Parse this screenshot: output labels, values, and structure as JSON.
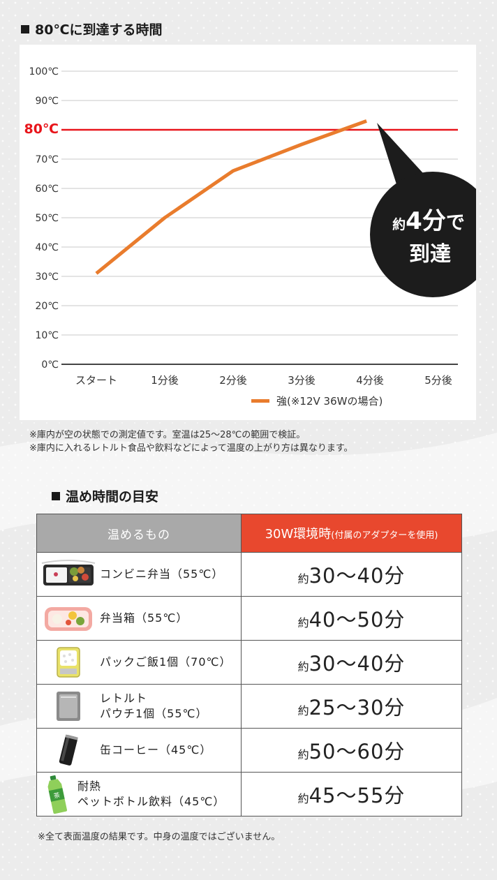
{
  "headings": {
    "chart_title": "80℃に到達する時間",
    "table_title": "温め時間の目安"
  },
  "chart_data": {
    "type": "line",
    "x_categories": [
      "スタート",
      "1分後",
      "2分後",
      "3分後",
      "4分後",
      "5分後"
    ],
    "y_ticks": [
      "0℃",
      "10℃",
      "20℃",
      "30℃",
      "40℃",
      "50℃",
      "60℃",
      "70℃",
      "80℃",
      "90℃",
      "100℃"
    ],
    "ylim": [
      0,
      100
    ],
    "grid": true,
    "highlight_tick": "80℃",
    "threshold": {
      "value": 80,
      "color": "#e8151b"
    },
    "series": [
      {
        "name": "強(※12V 36Wの場合)",
        "color": "#e97c2d",
        "x": [
          0,
          1,
          2,
          3,
          3.95
        ],
        "y": [
          31,
          50,
          66,
          75,
          83
        ]
      }
    ],
    "callout": {
      "line1_prefix": "約",
      "line1_value": "4分",
      "line1_suffix": "で",
      "line2": "到達"
    },
    "legend_position": "bottom"
  },
  "notes": [
    "※庫内が空の状態での測定値です。室温は25～28℃の範囲で検証。",
    "※庫内に入れるレトルト食品や飲料などによって温度の上がり方は異なります。"
  ],
  "table": {
    "header_item": "温めるもの",
    "header_time_main": "30W環境時",
    "header_time_sub": "(付属のアダプターを使用)",
    "rows": [
      {
        "icon": "bento-convenience-icon",
        "name": "コンビニ弁当（55℃）",
        "prefix": "約",
        "time": "30～40分"
      },
      {
        "icon": "lunchbox-icon",
        "name": "弁当箱（55℃）",
        "prefix": "約",
        "time": "40～50分"
      },
      {
        "icon": "rice-pack-icon",
        "name": "パックご飯1個（70℃）",
        "prefix": "約",
        "time": "30～40分"
      },
      {
        "icon": "retort-pouch-icon",
        "name_line1": "レトルト",
        "name_line2": "パウチ1個（55℃）",
        "prefix": "約",
        "time": "25～30分"
      },
      {
        "icon": "coffee-can-icon",
        "name": "缶コーヒー（45℃）",
        "prefix": "約",
        "time": "50～60分"
      },
      {
        "icon": "pet-bottle-icon",
        "name_line1": "耐熱",
        "name_line2": "ペットボトル飲料（45℃）",
        "prefix": "約",
        "time": "45～55分"
      }
    ]
  },
  "footnote": "※全て表面温度の結果です。中身の温度ではございません。",
  "colors": {
    "accent_red": "#e8482e",
    "threshold_red": "#e8151b",
    "line_orange": "#e97c2d",
    "header_gray": "#a9a9a9",
    "callout_black": "#1c1c1c"
  }
}
